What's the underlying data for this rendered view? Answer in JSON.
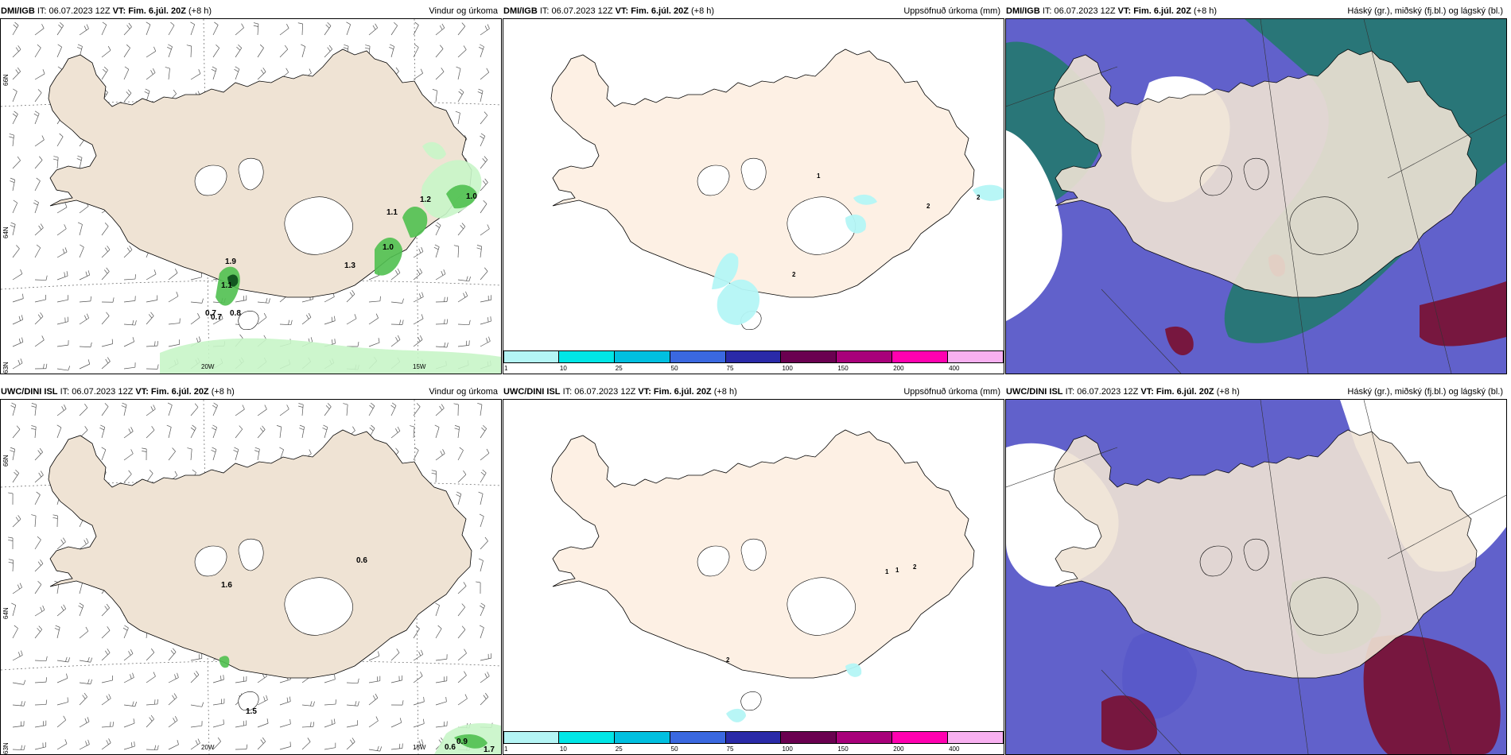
{
  "panels": [
    {
      "model": "DMI/IGB",
      "it": "IT: 06.07.2023 12Z",
      "vt": "VT: Fim. 6.júl. 20Z",
      "lead": "(+8 h)",
      "title": "Vindur og úrkoma",
      "type": "wind"
    },
    {
      "model": "DMI/IGB",
      "it": "IT: 06.07.2023 12Z",
      "vt": "VT: Fim. 6.júl. 20Z",
      "lead": "(+8 h)",
      "title": "Uppsöfnuð úrkoma (mm)",
      "type": "precip"
    },
    {
      "model": "DMI/IGB",
      "it": "IT: 06.07.2023 12Z",
      "vt": "VT: Fim. 6.júl. 20Z",
      "lead": "(+8 h)",
      "title": "Háský (gr.), miðský (fj.bl.) og lágský (bl.)",
      "type": "cloud"
    },
    {
      "model": "UWC/DINI ISL",
      "it": "IT: 06.07.2023 12Z",
      "vt": "VT: Fim. 6.júl. 20Z",
      "lead": "(+8 h)",
      "title": "Vindur og úrkoma",
      "type": "wind"
    },
    {
      "model": "UWC/DINI ISL",
      "it": "IT: 06.07.2023 12Z",
      "vt": "VT: Fim. 6.júl. 20Z",
      "lead": "(+8 h)",
      "title": "Uppsöfnuð úrkoma (mm)",
      "type": "precip"
    },
    {
      "model": "UWC/DINI ISL",
      "it": "IT: 06.07.2023 12Z",
      "vt": "VT: Fim. 6.júl. 20Z",
      "lead": "(+8 h)",
      "title": "Háský (gr.), miðský (fj.bl.) og lágský (bl.)",
      "type": "cloud"
    }
  ],
  "grid_labels": {
    "lat": [
      "66N",
      "64N",
      "63N"
    ],
    "lon": [
      "20W",
      "15W"
    ]
  },
  "precip_values_dmi": [
    "0.7",
    "1.2",
    "1.0",
    "1.1",
    "1.0",
    "1.9",
    "1.1",
    "0.7",
    "0.8",
    "1.3"
  ],
  "precip_values_uwc": [
    "0.6",
    "1.6",
    "1.5",
    "0.9",
    "0.6",
    "1.7"
  ],
  "accum_values_dmi": [
    "1",
    "2",
    "2",
    "2"
  ],
  "accum_values_uwc": [
    "1",
    "1",
    "2",
    "2"
  ],
  "legend": {
    "ticks": [
      "1",
      "10",
      "25",
      "50",
      "75",
      "100",
      "150",
      "200",
      "400"
    ],
    "colors": [
      "#b4f5f5",
      "#00e6e6",
      "#00c0e0",
      "#3a68e0",
      "#2a2aa8",
      "#6a0050",
      "#a8007a",
      "#ff00b0",
      "#f8b0f0"
    ]
  },
  "colors": {
    "land": "#efe3d4",
    "land_precip": "#fdf0e4",
    "rain_light": "#c8f5c8",
    "rain_med": "#50c050",
    "rain_dark": "#0a4a1a",
    "high": "#5858c8",
    "mid": "#207a6a",
    "low": "#7a1030",
    "magenta": "#e060e0"
  }
}
